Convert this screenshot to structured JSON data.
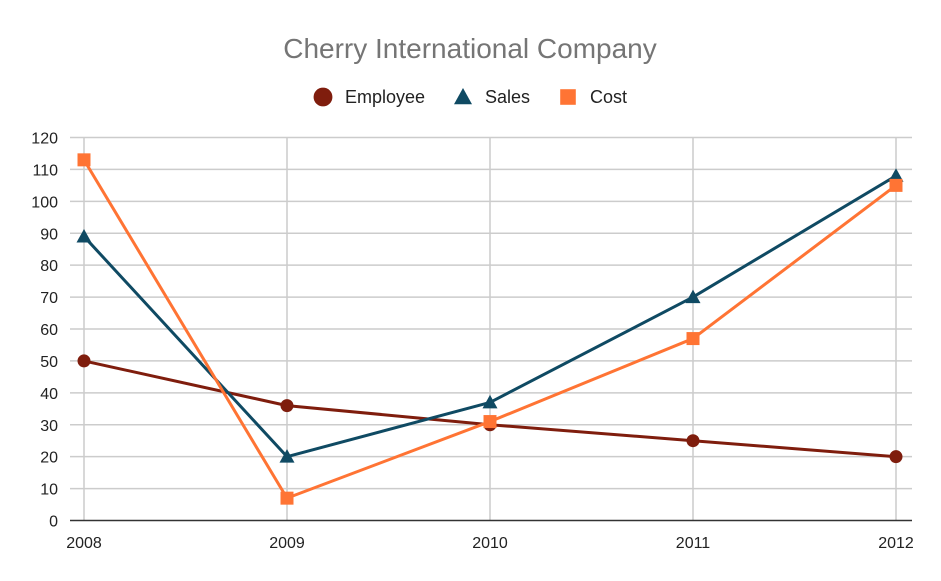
{
  "chart_data": {
    "type": "line",
    "title": "Cherry International Company",
    "xlabel": "",
    "ylabel": "",
    "categories": [
      "2008",
      "2009",
      "2010",
      "2011",
      "2012"
    ],
    "ylim": [
      0,
      120
    ],
    "yticks": [
      0,
      10,
      20,
      30,
      40,
      50,
      60,
      70,
      80,
      90,
      100,
      110,
      120
    ],
    "grid": true,
    "legend_position": "top",
    "series": [
      {
        "name": "Employee",
        "marker": "circle",
        "color": "#7f1d0d",
        "values": [
          50,
          36,
          30,
          25,
          20
        ]
      },
      {
        "name": "Sales",
        "marker": "triangle",
        "color": "#0f4a63",
        "values": [
          89,
          20,
          37,
          70,
          108
        ]
      },
      {
        "name": "Cost",
        "marker": "square",
        "color": "#ff7434",
        "values": [
          113,
          7,
          31,
          57,
          105
        ]
      }
    ]
  }
}
